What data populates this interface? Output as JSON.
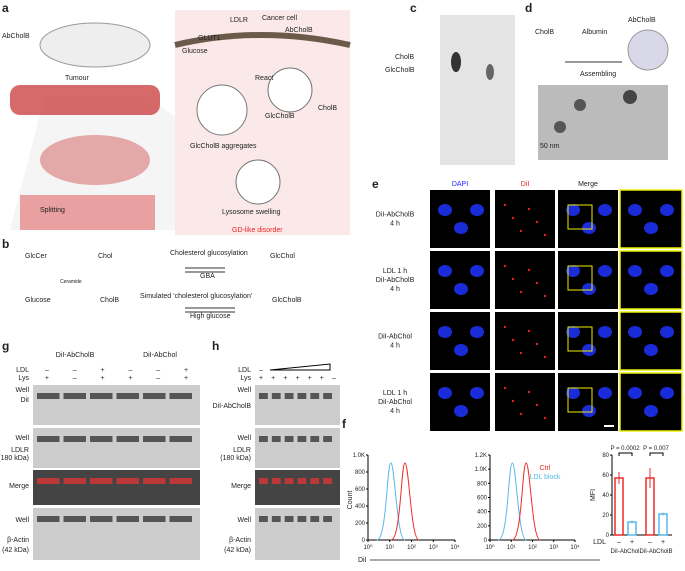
{
  "panel_labels": [
    "a",
    "b",
    "c",
    "d",
    "e",
    "f",
    "g",
    "h"
  ],
  "a": {
    "drug": "AbCholB",
    "ldlr": "LDLR",
    "cell": "Cancer cell",
    "glut1": "GLUT1",
    "abcholb": "AbCholB",
    "glucose": "Glucose",
    "tumour": "Tumour",
    "react": "React",
    "glccholb": "GlcCholB",
    "cholb": "CholB",
    "aggregates": "GlcCholB aggregates",
    "swelling": "Lysosome swelling",
    "splitting": "Splitting",
    "disorder": "GD-like disorder"
  },
  "b": {
    "glccer": "GlcCer",
    "ceramide": "Ceramide",
    "chol": "Chol",
    "reaction1": "Cholesterol glucosylation",
    "gba": "GBA",
    "glcchol": "GlcChol",
    "glucose": "Glucose",
    "cholb": "CholB",
    "reaction2": "Simulated ‘cholesterol glucosylation’",
    "high_glucose": "High glucose",
    "glccholb": "GlcCholB"
  },
  "c": {
    "cholb": "CholB",
    "glccholb": "GlcCholB"
  },
  "d": {
    "cholb": "CholB",
    "albumin": "Albumin",
    "abcholb": "AbCholB",
    "assembling": "Assembling",
    "scale": "50 nm"
  },
  "e": {
    "columns": [
      "DAPI",
      "DiI",
      "Merge"
    ],
    "rows": [
      [
        "DiI-AbCholB",
        "4 h"
      ],
      [
        "LDL 1 h",
        "DiI-AbCholB",
        "4 h"
      ],
      [
        "DiI-AbChol",
        "4 h"
      ],
      [
        "LDL 1 h",
        "DiI-AbChol",
        "4 h"
      ]
    ]
  },
  "f": {
    "xlabel": "DiI",
    "ylabel": "Count",
    "legend": [
      {
        "name": "Ctrl",
        "color": "#ee2b2b"
      },
      {
        "name": "LDL block",
        "color": "#5ab8e8"
      }
    ],
    "histograms": [
      {
        "xscale": "log",
        "xlim": [
          1,
          10000
        ],
        "xticks": [
          {
            "value": 1,
            "label": "10⁰"
          },
          {
            "value": 10,
            "label": "10¹"
          },
          {
            "value": 100,
            "label": "10²"
          },
          {
            "value": 1000,
            "label": "10³"
          },
          {
            "value": 10000,
            "label": "10⁴"
          }
        ],
        "ylim": [
          0,
          1000
        ],
        "yticks": [
          0,
          200,
          400,
          600,
          800,
          {
            "value": 1000,
            "label": "1.0K"
          }
        ]
      },
      {
        "xscale": "log",
        "xlim": [
          1,
          10000
        ],
        "xticks": [
          {
            "value": 1,
            "label": "10⁰"
          },
          {
            "value": 10,
            "label": "10¹"
          },
          {
            "value": 100,
            "label": "10²"
          },
          {
            "value": 1000,
            "label": "10³"
          },
          {
            "value": 10000,
            "label": "10⁴"
          }
        ],
        "ylim": [
          0,
          1200
        ],
        "yticks": [
          0,
          200,
          400,
          600,
          800,
          {
            "value": 1000,
            "label": "1.0K"
          },
          {
            "value": 1200,
            "label": "1.2K"
          }
        ]
      }
    ],
    "bar": {
      "type": "bar",
      "ylabel": "MFI",
      "ylim": [
        0,
        80
      ],
      "yticks": [
        0,
        20,
        40,
        60,
        80
      ],
      "row_label": "LDL",
      "signs": [
        "–",
        "+",
        "–",
        "+"
      ],
      "groups": [
        "DiI-AbChol",
        "DiI-AbCholB"
      ],
      "values": [
        57,
        13,
        57,
        21
      ],
      "errors": [
        6,
        1.5,
        10,
        1.5
      ],
      "colors": [
        "#ee2b2b",
        "#5ab8e8",
        "#ee2b2b",
        "#5ab8e8"
      ],
      "pvalues": [
        "P = 0.0002",
        "P = 0.007"
      ]
    }
  },
  "g": {
    "groups": [
      "DiI-AbCholB",
      "DiI-AbChol"
    ],
    "ldl": [
      "–",
      "–",
      "+",
      "–",
      "–",
      "+"
    ],
    "lys": [
      "+",
      "–",
      "+",
      "+",
      "–",
      "+"
    ],
    "labels": [
      "Well",
      "DiI",
      "Well",
      "LDLR",
      "(180 kDa)",
      "Merge",
      "Well",
      "β-Actin",
      "(42 kDa)"
    ],
    "ldl_label": "LDL",
    "lys_label": "Lys"
  },
  "h": {
    "ldl_label": "LDL",
    "lys_label": "Lys",
    "ldl": [
      "–"
    ],
    "lys": [
      "+",
      "+",
      "+",
      "+",
      "+",
      "+",
      "–"
    ],
    "labels": [
      "Well",
      "DiI-AbCholB",
      "Well",
      "LDLR",
      "(180 kDa)",
      "Merge",
      "Well",
      "β-Actin",
      "(42 kDa)"
    ]
  }
}
